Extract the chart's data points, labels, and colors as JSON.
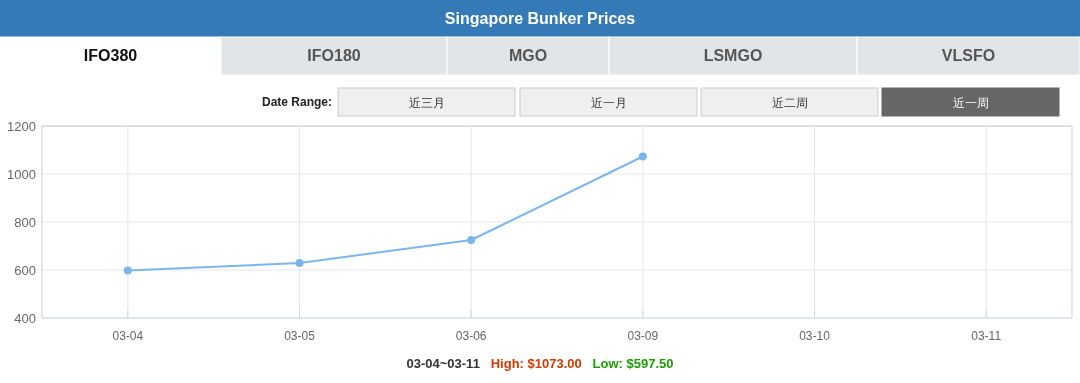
{
  "chart_data": {
    "type": "line",
    "title": "Singapore Bunker Prices",
    "categories": [
      "03-04",
      "03-05",
      "03-06",
      "03-09",
      "03-10",
      "03-11"
    ],
    "series": [
      {
        "color": "#7cb5ec",
        "values": [
          597.5,
          629,
          725,
          1073,
          null,
          null
        ]
      }
    ],
    "ylim": [
      400,
      1200
    ],
    "yticks": [
      400,
      600,
      800,
      1000,
      1200
    ],
    "grid": true,
    "marker": "circle",
    "annotations": [
      "IFO380",
      "IFO180",
      "MGO",
      "LSMGO",
      "VLSFO",
      "Date Range:",
      "近三月",
      "近一月",
      "近二周",
      "近一周",
      "03-04~03-11",
      "High: $1073.00",
      "Low: $597.50"
    ]
  }
}
